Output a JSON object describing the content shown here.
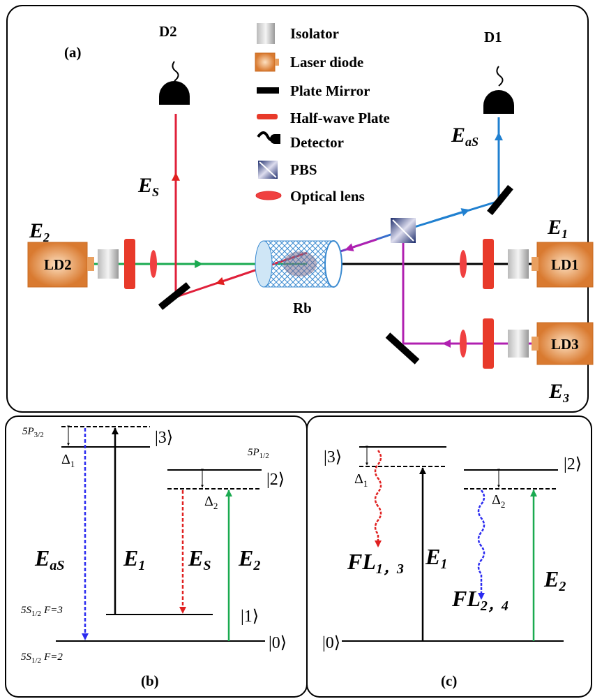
{
  "panel_a": {
    "label": "(a)",
    "detectors": [
      "D2",
      "D1"
    ],
    "legend": [
      "Isolator",
      "Laser diode",
      "Plate Mirror",
      "Half-wave Plate",
      "Detector",
      "PBS",
      "Optical lens"
    ],
    "lasers": [
      "LD2",
      "LD1",
      "LD3"
    ],
    "cell": "Rb",
    "fields": {
      "es": {
        "main": "E",
        "sub": "S"
      },
      "eas": {
        "main": "E",
        "sub": "aS"
      },
      "e2": {
        "main": "E",
        "sub": "2"
      },
      "e1": {
        "main": "E",
        "sub": "1"
      },
      "e3": {
        "main": "E",
        "sub": "3"
      }
    }
  },
  "panel_b": {
    "label": "(b)",
    "p32": {
      "main": "5P",
      "sub": "3/2"
    },
    "p12": {
      "main": "5P",
      "sub": "1/2"
    },
    "s12f3": {
      "main": "5S",
      "sub": "1/2",
      "rest": "F=3"
    },
    "s12f2": {
      "main": "5S",
      "sub": "1/2",
      "rest": "F=2"
    },
    "states": [
      "|3⟩",
      "|2⟩",
      "|1⟩",
      "|0⟩"
    ],
    "delta1": {
      "main": "Δ",
      "sub": "1"
    },
    "delta2": {
      "main": "Δ",
      "sub": "2"
    },
    "fields": {
      "eas": {
        "main": "E",
        "sub": "aS"
      },
      "e1": {
        "main": "E",
        "sub": "1"
      },
      "es": {
        "main": "E",
        "sub": "S"
      },
      "e2": {
        "main": "E",
        "sub": "2"
      }
    }
  },
  "panel_c": {
    "label": "(c)",
    "states": [
      "|3⟩",
      "|2⟩",
      "|0⟩"
    ],
    "delta1": {
      "main": "Δ",
      "sub": "1"
    },
    "delta2": {
      "main": "Δ",
      "sub": "2"
    },
    "fl13": {
      "main": "FL",
      "sub": "1，3"
    },
    "fl24": {
      "main": "FL",
      "sub": "2，4"
    },
    "e1": {
      "main": "E",
      "sub": "1"
    },
    "e2": {
      "main": "E",
      "sub": "2"
    }
  }
}
